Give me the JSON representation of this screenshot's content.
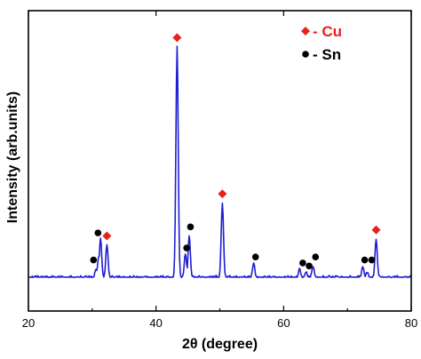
{
  "chart_data": {
    "type": "line",
    "title": "",
    "xlabel": "2θ (degree)",
    "ylabel": "Intensity (arb.units)",
    "xlim": [
      20,
      80
    ],
    "ylim": [
      0,
      100
    ],
    "xticks": [
      20,
      40,
      60,
      80
    ],
    "x_tick_labels": [
      "20",
      "40",
      "60",
      "80"
    ],
    "grid": false,
    "legend_position": "top-right",
    "colors": {
      "line": "#1f1fd1",
      "cu_marker": "#e8221b",
      "sn_marker": "#000000"
    },
    "series": [
      {
        "baseline": 11,
        "peaks": [
          {
            "x": 30.6,
            "y": 14
          },
          {
            "x": 31.0,
            "y": 18
          },
          {
            "x": 31.3,
            "y": 24
          },
          {
            "x": 32.3,
            "y": 22
          },
          {
            "x": 43.3,
            "y": 20
          },
          {
            "x": 43.3,
            "y": 88
          },
          {
            "x": 44.6,
            "y": 19
          },
          {
            "x": 45.2,
            "y": 25
          },
          {
            "x": 50.4,
            "y": 36
          },
          {
            "x": 55.3,
            "y": 16
          },
          {
            "x": 62.5,
            "y": 14
          },
          {
            "x": 63.5,
            "y": 13
          },
          {
            "x": 64.6,
            "y": 15
          },
          {
            "x": 72.4,
            "y": 15
          },
          {
            "x": 73.1,
            "y": 13
          },
          {
            "x": 74.5,
            "y": 24
          }
        ]
      }
    ],
    "annotations": {
      "cu": [
        {
          "x": 32.3,
          "y": 25
        },
        {
          "x": 43.3,
          "y": 91
        },
        {
          "x": 50.4,
          "y": 39
        },
        {
          "x": 74.5,
          "y": 27
        }
      ],
      "sn": [
        {
          "x": 30.2,
          "y": 17
        },
        {
          "x": 30.9,
          "y": 26
        },
        {
          "x": 44.8,
          "y": 21
        },
        {
          "x": 45.4,
          "y": 28
        },
        {
          "x": 55.6,
          "y": 18
        },
        {
          "x": 63.0,
          "y": 16
        },
        {
          "x": 64.0,
          "y": 15
        },
        {
          "x": 65.0,
          "y": 18
        },
        {
          "x": 72.7,
          "y": 17
        },
        {
          "x": 73.8,
          "y": 17
        }
      ]
    },
    "legend": [
      {
        "symbol": "♦",
        "label": "- Cu",
        "color": "#e8221b"
      },
      {
        "symbol": "●",
        "label": "- Sn",
        "color": "#000000"
      }
    ]
  }
}
